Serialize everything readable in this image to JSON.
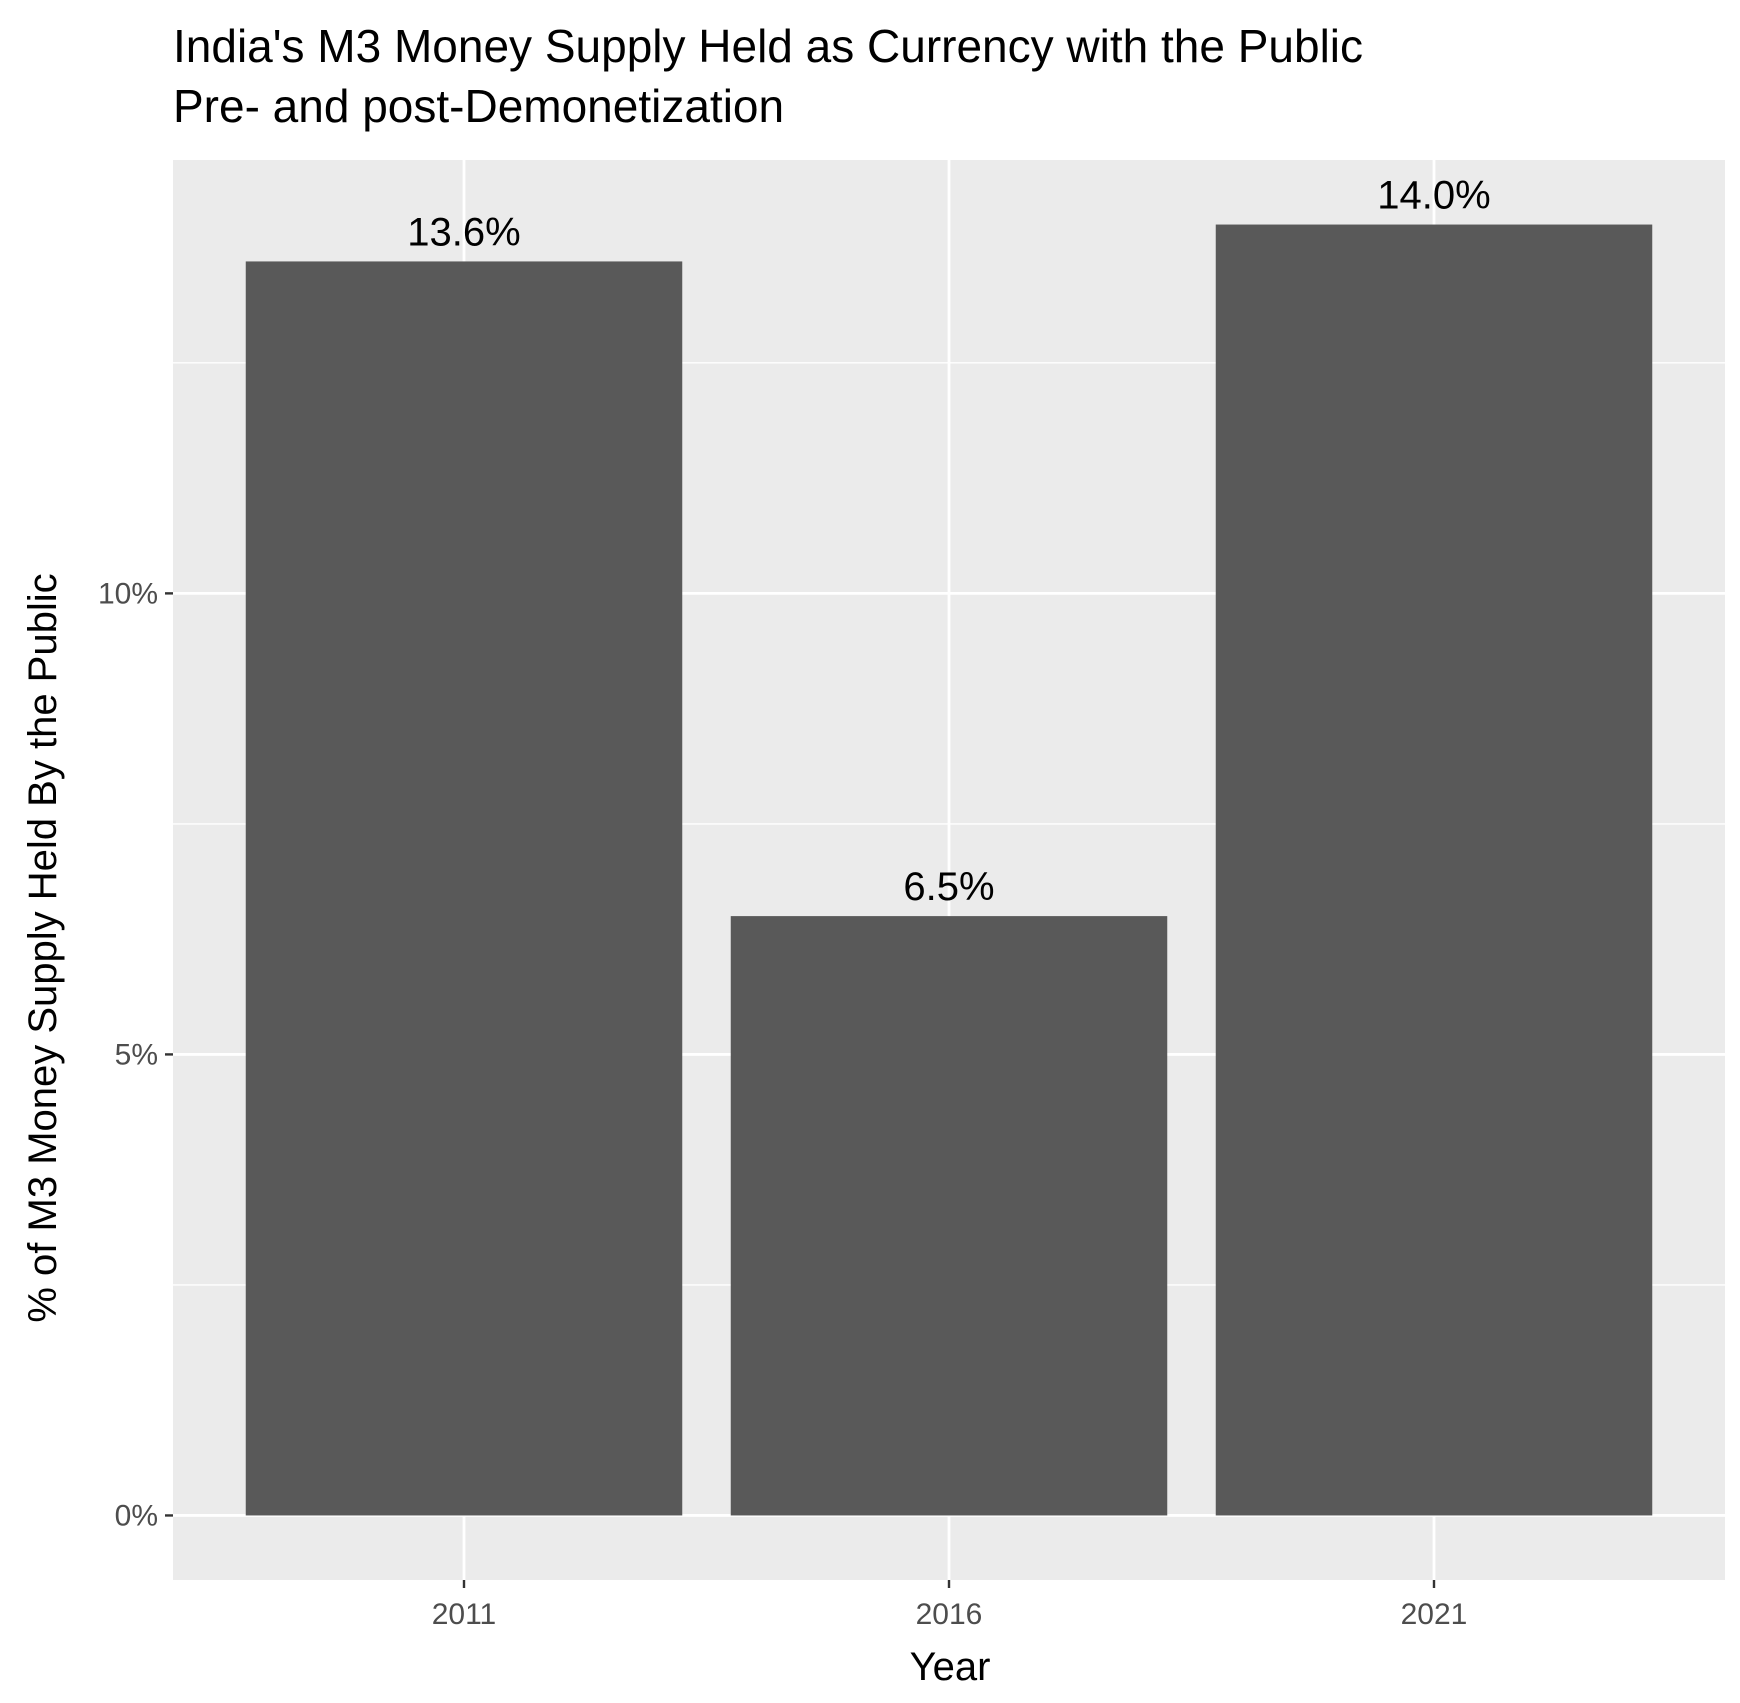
{
  "chart_data": {
    "type": "bar",
    "title": "India's M3 Money Supply Held as Currency with the Public",
    "subtitle": "Pre- and post-Demonetization",
    "xlabel": "Year",
    "ylabel": "% of M3 Money Supply Held By the Public",
    "categories": [
      "2011",
      "2016",
      "2021"
    ],
    "values": [
      13.6,
      6.5,
      14.0
    ],
    "data_labels": [
      "13.6%",
      "6.5%",
      "14.0%"
    ],
    "ylim": [
      -0.7,
      14.7
    ],
    "yticks": [
      0,
      5,
      10
    ],
    "ytick_labels": [
      "0%",
      "5%",
      "10%"
    ],
    "colors": {
      "bar": "#595959",
      "panel": "#ebebeb",
      "grid": "#ffffff"
    },
    "grid": true,
    "legend": "none"
  }
}
